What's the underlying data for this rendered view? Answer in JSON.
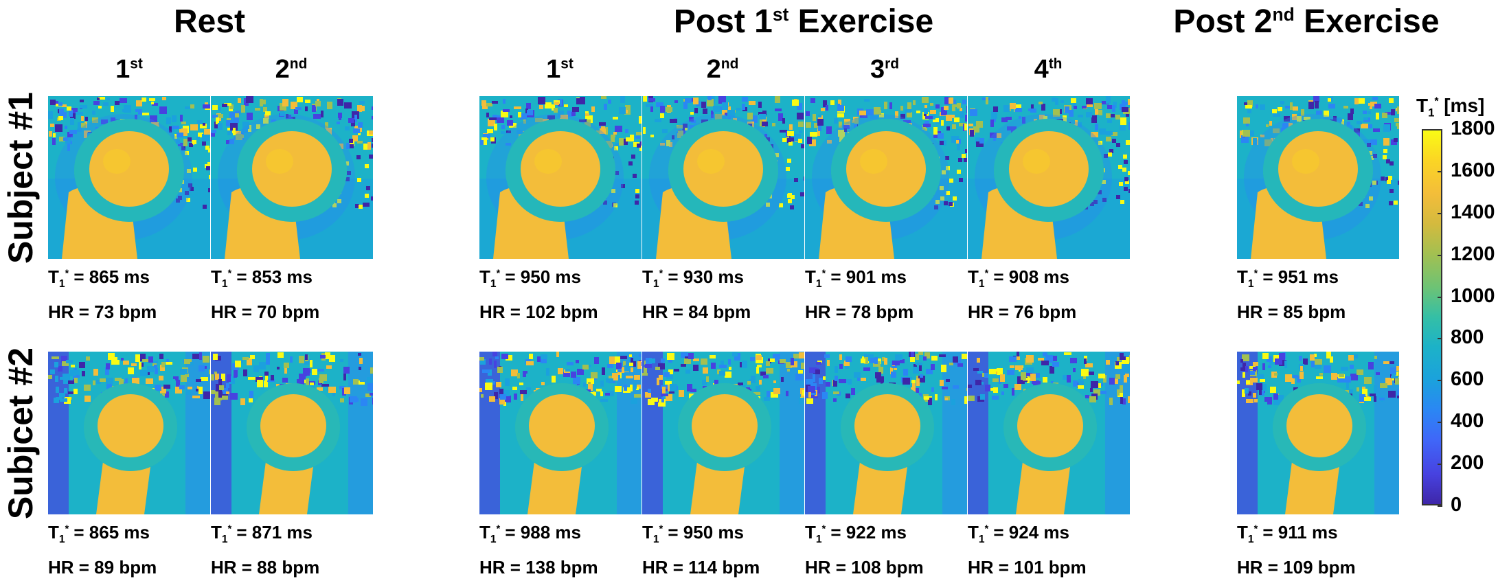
{
  "groups": {
    "rest": "Rest",
    "post1_base": "Post 1",
    "post1_sup": "st",
    "post1_tail": " Exercise",
    "post2_base": "Post 2",
    "post2_sup": "nd",
    "post2_tail": " Exercise"
  },
  "columns": [
    {
      "num": "1",
      "sup": "st"
    },
    {
      "num": "2",
      "sup": "nd"
    },
    {
      "num": "1",
      "sup": "st"
    },
    {
      "num": "2",
      "sup": "nd"
    },
    {
      "num": "3",
      "sup": "rd"
    },
    {
      "num": "4",
      "sup": "th"
    }
  ],
  "rows": [
    "Subject #1",
    "Subjcet #2"
  ],
  "t1_symbol": "T",
  "t1_sub": "1",
  "t1_star": "*",
  "panels": {
    "s1": [
      {
        "t1": "= 865 ms",
        "hr": "HR = 73 bpm"
      },
      {
        "t1": "= 853 ms",
        "hr": "HR = 70 bpm"
      },
      {
        "t1": "= 950 ms",
        "hr": "HR = 102 bpm"
      },
      {
        "t1": "= 930 ms",
        "hr": "HR = 84 bpm"
      },
      {
        "t1": "= 901 ms",
        "hr": "HR = 78 bpm"
      },
      {
        "t1": "= 908 ms",
        "hr": "HR = 76  bpm"
      },
      {
        "t1": "= 951 ms",
        "hr": "HR = 85 bpm"
      }
    ],
    "s2": [
      {
        "t1": "= 865 ms",
        "hr": "HR = 89 bpm"
      },
      {
        "t1": "= 871 ms",
        "hr": "HR = 88 bpm"
      },
      {
        "t1": "= 988 ms",
        "hr": "HR = 138 bpm"
      },
      {
        "t1": "= 950 ms",
        "hr": "HR = 114 bpm"
      },
      {
        "t1": "= 922 ms",
        "hr": "HR = 108 bpm"
      },
      {
        "t1": "= 924 ms",
        "hr": "HR = 101 bpm"
      },
      {
        "t1": "= 911 ms",
        "hr": "HR = 109 bpm"
      }
    ]
  },
  "colorbar": {
    "title_sym": "T",
    "title_sub": "1",
    "title_star": "*",
    "title_unit": "[ms]",
    "ticks": [
      "1800",
      "1600",
      "1400",
      "1200",
      "1000",
      "800",
      "600",
      "400",
      "200",
      "0"
    ],
    "colors": {
      "low": "#3e26a8",
      "mid": "#1cb2c8",
      "high": "#f9fb15"
    }
  }
}
